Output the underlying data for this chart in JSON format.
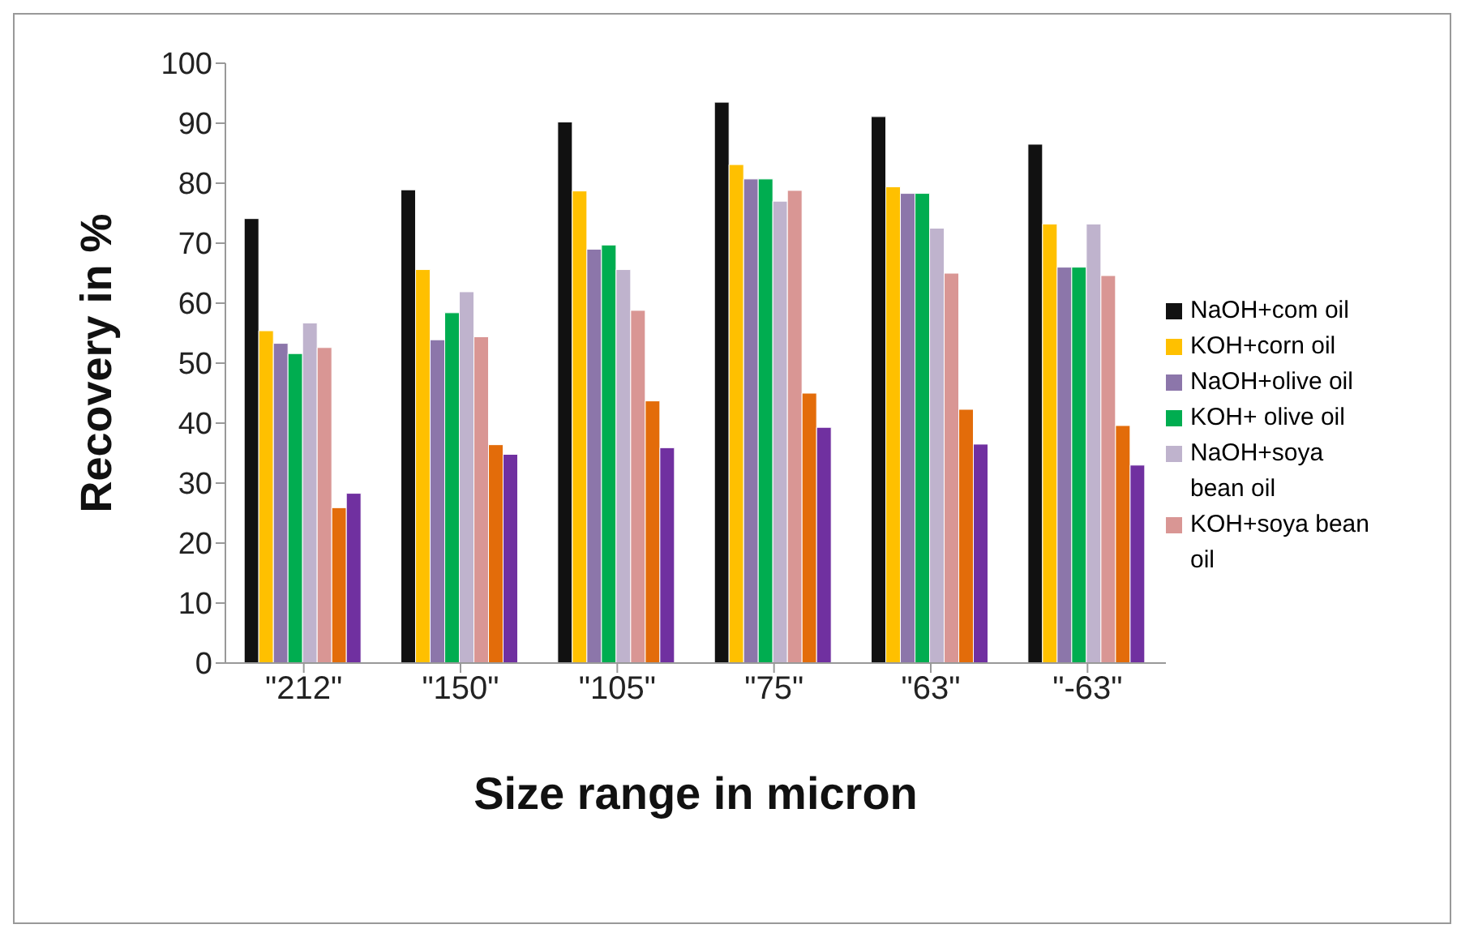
{
  "chart_data": {
    "type": "bar",
    "xlabel": "Size range in micron",
    "ylabel": "Recovery in %",
    "categories": [
      "\"212\"",
      "\"150\"",
      "\"105\"",
      "\"75\"",
      "\"63\"",
      "\"-63\""
    ],
    "series": [
      {
        "name": "NaOH+com oil",
        "color": "#111111",
        "values": [
          74.1,
          78.9,
          90.2,
          93.5,
          91.1,
          86.5
        ]
      },
      {
        "name": "KOH+corn oil",
        "color": "#ffc000",
        "values": [
          55.4,
          65.6,
          78.7,
          83.1,
          79.4,
          73.2
        ]
      },
      {
        "name": "NaOH+olive oil",
        "color": "#8c76aa",
        "values": [
          53.3,
          53.9,
          69.0,
          80.7,
          78.3,
          66.0
        ]
      },
      {
        "name": "KOH+ olive oil",
        "color": "#00ad50",
        "values": [
          51.6,
          58.4,
          69.7,
          80.7,
          78.3,
          66.0
        ]
      },
      {
        "name": "NaOH+soya bean oil",
        "color": "#bfb3cd",
        "values": [
          56.7,
          61.9,
          65.6,
          77.0,
          72.5,
          73.2
        ]
      },
      {
        "name": "KOH+soya bean oil",
        "color": "#d99694",
        "values": [
          52.6,
          54.4,
          58.8,
          78.8,
          65.0,
          64.6
        ]
      },
      {
        "color": "#e36c0a",
        "values": [
          25.9,
          36.4,
          43.7,
          45.0,
          42.3,
          39.6
        ]
      },
      {
        "color": "#7030a0",
        "values": [
          28.3,
          34.8,
          35.9,
          39.3,
          36.5,
          33.0
        ]
      }
    ],
    "ylim": [
      0,
      100
    ],
    "yticks": [
      0,
      10,
      20,
      30,
      40,
      50,
      60,
      70,
      80,
      90,
      100
    ],
    "grid": false,
    "legend": "right"
  }
}
